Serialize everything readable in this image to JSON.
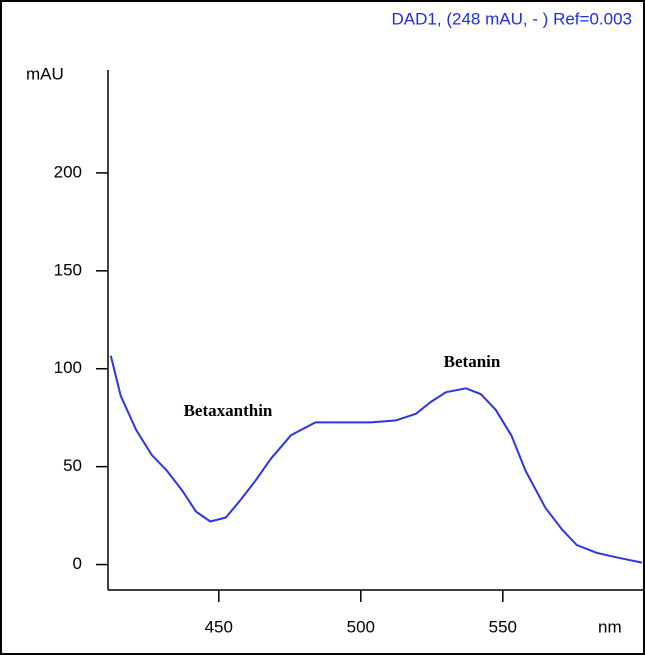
{
  "chart_data": {
    "type": "line",
    "title": "DAD1, (248 mAU, - ) Ref=0.003",
    "x_label": "nm",
    "y_label": "mAU",
    "annotations": [
      "Betaxanthin",
      "Betanin"
    ],
    "color": "#2b35e6",
    "x": [
      412,
      415.5,
      421,
      426.4,
      431.7,
      437,
      442,
      447,
      452.5,
      457.7,
      463,
      468.3,
      475.4,
      484,
      493,
      503.5,
      512.3,
      519.4,
      524.6,
      530,
      537,
      542.3,
      547.5,
      553,
      558,
      565,
      570.8,
      576,
      583,
      590.5,
      599
    ],
    "values": [
      106.6,
      86,
      68.5,
      56,
      48,
      38,
      27,
      22,
      24,
      33,
      43,
      54,
      66,
      72.6,
      72.6,
      72.6,
      73.6,
      77,
      83,
      88,
      90,
      87,
      79,
      66,
      48,
      29,
      18,
      10,
      6,
      3.5,
      1
    ],
    "xlim": [
      411,
      599
    ],
    "ylim": [
      -13,
      250
    ],
    "xticks": [
      450,
      500,
      550
    ],
    "yticks": [
      0,
      50,
      100,
      150,
      200
    ]
  }
}
